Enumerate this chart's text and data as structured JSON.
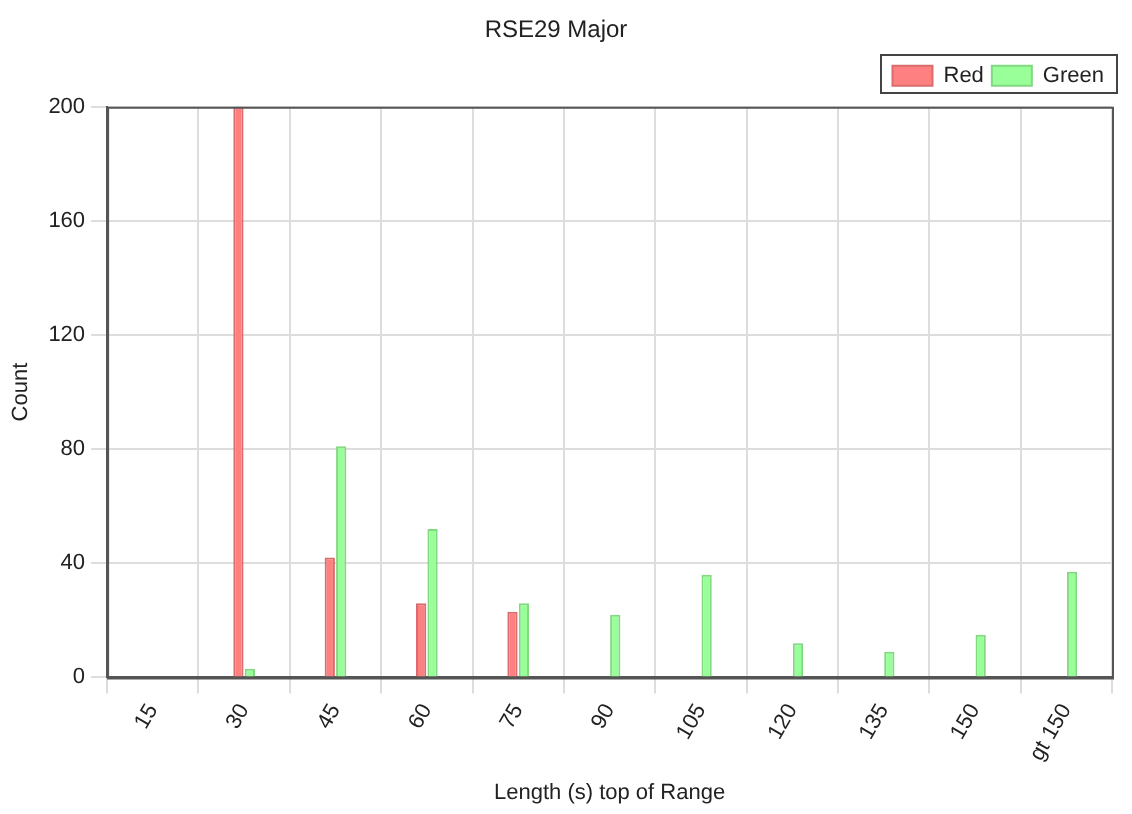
{
  "chart_data": {
    "type": "bar",
    "title": "RSE29 Major",
    "xlabel": "Length (s) top of Range",
    "ylabel": "Count",
    "categories": [
      "15",
      "30",
      "45",
      "60",
      "75",
      "90",
      "105",
      "120",
      "135",
      "150",
      "gt 150"
    ],
    "series": [
      {
        "name": "Red",
        "color": "#ff8080",
        "values": [
          0,
          200,
          42,
          26,
          23,
          0,
          0,
          0,
          0,
          0,
          0
        ]
      },
      {
        "name": "Green",
        "color": "#99ff99",
        "values": [
          0,
          3,
          81,
          52,
          26,
          22,
          36,
          12,
          9,
          15,
          37
        ]
      }
    ],
    "ylim": [
      0,
      200
    ],
    "yticks": [
      0,
      40,
      80,
      120,
      160,
      200
    ],
    "grid": true,
    "legend": "top right"
  }
}
